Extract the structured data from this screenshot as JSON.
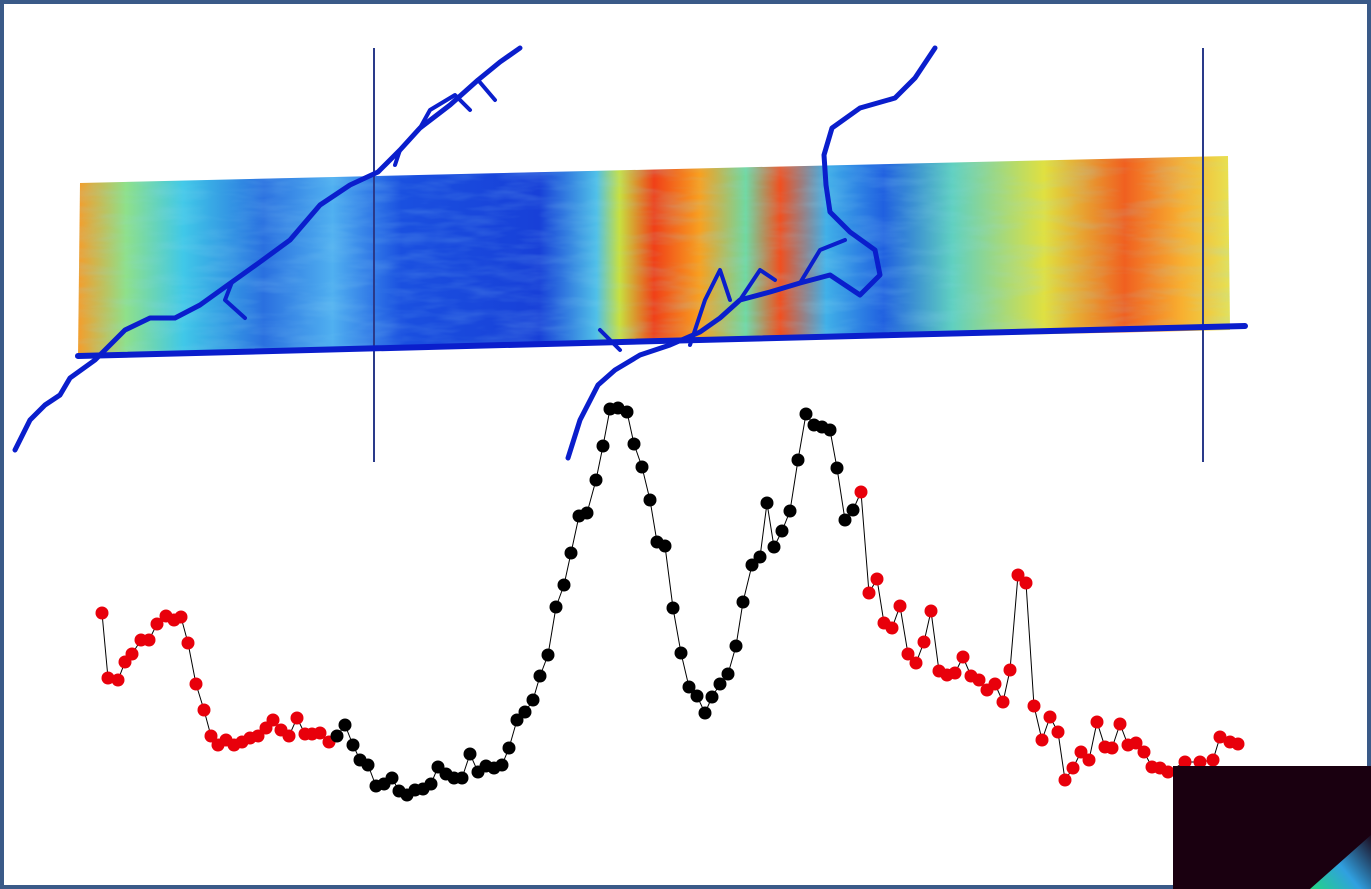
{
  "chart_data": {
    "type": "line",
    "x": [
      102,
      108,
      118,
      125,
      132,
      141,
      149,
      157,
      166,
      174,
      181,
      188,
      196,
      204,
      211,
      218,
      226,
      234,
      242,
      250,
      258,
      266,
      273,
      281,
      289,
      297,
      305,
      312,
      320,
      329,
      337,
      345,
      353,
      360,
      368,
      376,
      384,
      392,
      399,
      407,
      415,
      423,
      431,
      438,
      446,
      454,
      462,
      470,
      478,
      486,
      494,
      502,
      509,
      517,
      525,
      533,
      540,
      548,
      556,
      564,
      571,
      579,
      587,
      596,
      603,
      610,
      618,
      627,
      634,
      642,
      650,
      657,
      665,
      673,
      681,
      689,
      697,
      705,
      712,
      720,
      728,
      736,
      743,
      752,
      760,
      767,
      774,
      782,
      790,
      798,
      806,
      814,
      822,
      830,
      837,
      845,
      853,
      861,
      869,
      877,
      884,
      892,
      900,
      908,
      916,
      924,
      931,
      939,
      947,
      955,
      963,
      971,
      979,
      987,
      995,
      1003,
      1010,
      1018,
      1026,
      1034,
      1042,
      1050,
      1058,
      1065,
      1073,
      1081,
      1089,
      1097,
      1105,
      1112,
      1120,
      1128,
      1136,
      1144,
      1152,
      1160,
      1168,
      1185,
      1200,
      1213,
      1220,
      1230,
      1238
    ],
    "values": [
      237,
      172,
      170,
      188,
      196,
      210,
      210,
      226,
      234,
      230,
      233,
      207,
      166,
      140,
      114,
      105,
      110,
      105,
      108,
      112,
      114,
      122,
      130,
      120,
      114,
      132,
      116,
      116,
      117,
      108,
      114,
      125,
      105,
      90,
      85,
      64,
      66,
      72,
      59,
      55,
      60,
      61,
      66,
      83,
      76,
      72,
      72,
      96,
      78,
      84,
      82,
      85,
      102,
      130,
      138,
      150,
      174,
      195,
      243,
      265,
      297,
      334,
      337,
      370,
      404,
      441,
      442,
      438,
      406,
      383,
      350,
      308,
      304,
      242,
      197,
      163,
      154,
      137,
      153,
      166,
      176,
      204,
      248,
      285,
      293,
      347,
      303,
      319,
      339,
      390,
      436,
      425,
      423,
      420,
      382,
      330,
      340,
      358,
      257,
      271,
      227,
      222,
      244,
      196,
      187,
      208,
      239,
      179,
      175,
      177,
      193,
      174,
      170,
      160,
      166,
      148,
      180,
      275,
      267,
      144,
      110,
      133,
      118,
      70,
      82,
      98,
      90,
      128,
      103,
      102,
      126,
      105,
      107,
      98,
      83,
      82,
      78,
      88,
      88,
      90,
      113,
      108,
      106
    ],
    "point_colors": [
      "#e8000b",
      "#e8000b",
      "#e8000b",
      "#e8000b",
      "#e8000b",
      "#e8000b",
      "#e8000b",
      "#e8000b",
      "#e8000b",
      "#e8000b",
      "#e8000b",
      "#e8000b",
      "#e8000b",
      "#e8000b",
      "#e8000b",
      "#e8000b",
      "#e8000b",
      "#e8000b",
      "#e8000b",
      "#e8000b",
      "#e8000b",
      "#e8000b",
      "#e8000b",
      "#e8000b",
      "#e8000b",
      "#e8000b",
      "#e8000b",
      "#e8000b",
      "#e8000b",
      "#e8000b",
      "#000000",
      "#000000",
      "#000000",
      "#000000",
      "#000000",
      "#000000",
      "#000000",
      "#000000",
      "#000000",
      "#000000",
      "#000000",
      "#000000",
      "#000000",
      "#000000",
      "#000000",
      "#000000",
      "#000000",
      "#000000",
      "#000000",
      "#000000",
      "#000000",
      "#000000",
      "#000000",
      "#000000",
      "#000000",
      "#000000",
      "#000000",
      "#000000",
      "#000000",
      "#000000",
      "#000000",
      "#000000",
      "#000000",
      "#000000",
      "#000000",
      "#000000",
      "#000000",
      "#000000",
      "#000000",
      "#000000",
      "#000000",
      "#000000",
      "#000000",
      "#000000",
      "#000000",
      "#000000",
      "#000000",
      "#000000",
      "#000000",
      "#000000",
      "#000000",
      "#000000",
      "#000000",
      "#000000",
      "#000000",
      "#000000",
      "#000000",
      "#000000",
      "#000000",
      "#000000",
      "#000000",
      "#000000",
      "#000000",
      "#000000",
      "#000000",
      "#000000",
      "#000000",
      "#e8000b",
      "#e8000b",
      "#e8000b",
      "#e8000b",
      "#e8000b",
      "#e8000b",
      "#e8000b",
      "#e8000b",
      "#e8000b",
      "#e8000b",
      "#e8000b",
      "#e8000b",
      "#e8000b",
      "#e8000b",
      "#e8000b",
      "#e8000b",
      "#e8000b",
      "#e8000b",
      "#e8000b",
      "#e8000b",
      "#e8000b",
      "#e8000b",
      "#e8000b",
      "#e8000b",
      "#e8000b",
      "#e8000b",
      "#e8000b",
      "#e8000b",
      "#e8000b",
      "#e8000b",
      "#e8000b",
      "#e8000b",
      "#e8000b",
      "#e8000b",
      "#e8000b",
      "#e8000b",
      "#e8000b",
      "#e8000b",
      "#e8000b",
      "#e8000b",
      "#e8000b",
      "#e8000b",
      "#e8000b",
      "#e8000b",
      "#e8000b",
      "#e8000b"
    ],
    "line_color": "#000000",
    "xlim": [
      0,
      1371
    ],
    "ylim": [
      0,
      460
    ]
  }
}
